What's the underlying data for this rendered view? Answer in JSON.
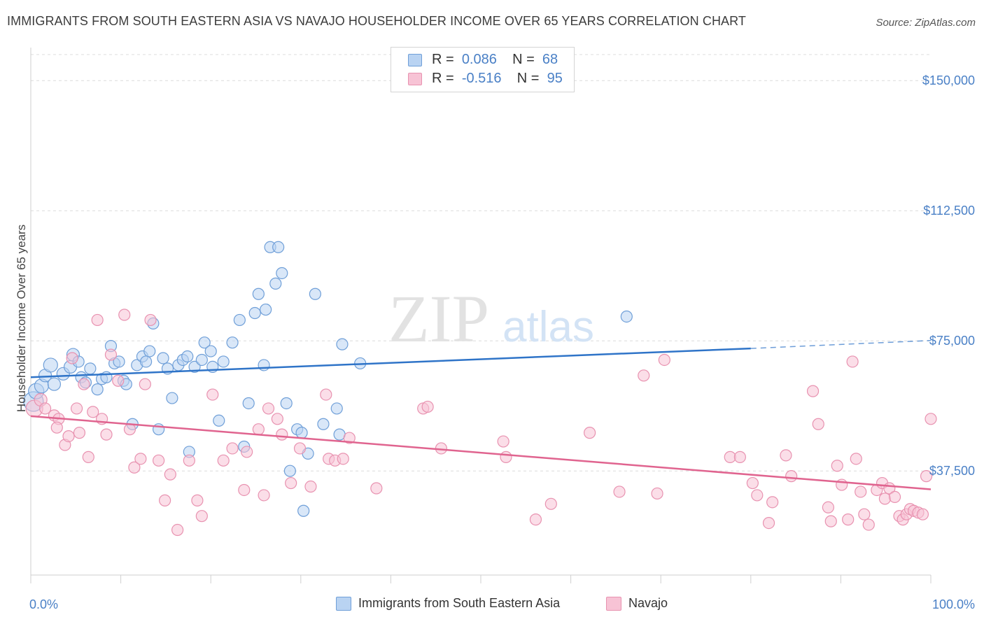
{
  "header": {
    "title": "IMMIGRANTS FROM SOUTH EASTERN ASIA VS NAVAJO HOUSEHOLDER INCOME OVER 65 YEARS CORRELATION CHART",
    "source": "Source: ZipAtlas.com"
  },
  "watermark": {
    "part1": "ZIP",
    "part2": "atlas"
  },
  "legend": {
    "series1": {
      "r_label": "R =",
      "r_value": "0.086",
      "n_label": "N =",
      "n_value": "68",
      "color": "#4a80c6"
    },
    "series2": {
      "r_label": "R =",
      "r_value": "-0.516",
      "n_label": "N =",
      "n_value": "95",
      "color": "#e36f9c"
    }
  },
  "colors": {
    "blue_fill": "#b9d3f2",
    "blue_stroke": "#6f9fd8",
    "blue_line": "#2f74c8",
    "pink_fill": "#f7c3d5",
    "pink_stroke": "#e892b0",
    "pink_line": "#e0648f",
    "grid": "#dcdcdc",
    "tick_text": "#4a80c6"
  },
  "chart_data": {
    "type": "scatter",
    "title": "IMMIGRANTS FROM SOUTH EASTERN ASIA VS NAVAJO HOUSEHOLDER INCOME OVER 65 YEARS CORRELATION CHART",
    "xlabel": "",
    "ylabel": "Householder Income Over 65 years",
    "xlim": [
      0,
      100
    ],
    "ylim": [
      7500,
      157500
    ],
    "x_tick_labels": [
      "0.0%",
      "100.0%"
    ],
    "y_ticks": [
      37500,
      75000,
      112500,
      150000
    ],
    "y_tick_labels": [
      "$37,500",
      "$75,000",
      "$112,500",
      "$150,000"
    ],
    "grid": true,
    "legend_position": "top-center",
    "series": [
      {
        "name": "Immigrants from South Eastern Asia",
        "color": "#4a80c6",
        "trend": {
          "x0": 0,
          "y0": 64500,
          "x1": 80,
          "y1": 72800,
          "dashed_to_x": 100,
          "dashed_to_y": 75100
        },
        "points": [
          [
            0.3,
            57500,
            14
          ],
          [
            0.6,
            60500,
            11
          ],
          [
            1.2,
            62000,
            10
          ],
          [
            1.6,
            65000,
            9
          ],
          [
            2.2,
            68000,
            10
          ],
          [
            2.6,
            62500,
            9
          ],
          [
            3.6,
            65500,
            9
          ],
          [
            4.4,
            67500,
            9
          ],
          [
            4.7,
            71000,
            9
          ],
          [
            5.3,
            69000,
            8
          ],
          [
            5.6,
            64500,
            8
          ],
          [
            6.1,
            63000,
            8
          ],
          [
            6.6,
            67000,
            8
          ],
          [
            7.4,
            61000,
            8
          ],
          [
            7.9,
            64000,
            8
          ],
          [
            8.4,
            64500,
            8
          ],
          [
            8.9,
            73500,
            8
          ],
          [
            9.3,
            68500,
            8
          ],
          [
            9.8,
            69000,
            8
          ],
          [
            10.3,
            63500,
            8
          ],
          [
            10.6,
            62500,
            8
          ],
          [
            11.3,
            51000,
            8
          ],
          [
            11.8,
            68000,
            8
          ],
          [
            12.4,
            70500,
            8
          ],
          [
            12.8,
            69000,
            8
          ],
          [
            13.2,
            72000,
            8
          ],
          [
            13.6,
            80000,
            8
          ],
          [
            14.2,
            49500,
            8
          ],
          [
            14.7,
            70000,
            8
          ],
          [
            15.2,
            67000,
            8
          ],
          [
            15.7,
            58500,
            8
          ],
          [
            16.4,
            68000,
            8
          ],
          [
            16.9,
            69500,
            8
          ],
          [
            17.4,
            70500,
            8
          ],
          [
            17.6,
            43000,
            8
          ],
          [
            18.2,
            67500,
            8
          ],
          [
            19.0,
            69500,
            8
          ],
          [
            19.3,
            74500,
            8
          ],
          [
            20.0,
            72000,
            8
          ],
          [
            20.2,
            67500,
            8
          ],
          [
            20.9,
            52000,
            8
          ],
          [
            21.4,
            69000,
            8
          ],
          [
            22.4,
            74500,
            8
          ],
          [
            23.2,
            81000,
            8
          ],
          [
            23.7,
            44500,
            8
          ],
          [
            24.2,
            57000,
            8
          ],
          [
            24.9,
            83000,
            8
          ],
          [
            25.3,
            88500,
            8
          ],
          [
            25.9,
            68000,
            8
          ],
          [
            26.1,
            84000,
            8
          ],
          [
            26.6,
            102000,
            8
          ],
          [
            27.2,
            91500,
            8
          ],
          [
            27.5,
            102000,
            8
          ],
          [
            27.9,
            94500,
            8
          ],
          [
            28.4,
            57000,
            8
          ],
          [
            28.8,
            37500,
            8
          ],
          [
            29.6,
            49500,
            8
          ],
          [
            30.3,
            26000,
            8
          ],
          [
            30.1,
            48500,
            8
          ],
          [
            30.8,
            42500,
            8
          ],
          [
            31.6,
            88500,
            8
          ],
          [
            32.5,
            51000,
            8
          ],
          [
            34.0,
            55500,
            8
          ],
          [
            34.3,
            48000,
            8
          ],
          [
            34.6,
            74000,
            8
          ],
          [
            36.6,
            68500,
            8
          ],
          [
            66.2,
            82000,
            8
          ]
        ]
      },
      {
        "name": "Navajo",
        "color": "#e36f9c",
        "trend": {
          "x0": 0,
          "y0": 53300,
          "x1": 100,
          "y1": 32200
        },
        "points": [
          [
            0.4,
            55500,
            12
          ],
          [
            1.1,
            58000,
            9
          ],
          [
            1.6,
            55500,
            8
          ],
          [
            2.6,
            53500,
            8
          ],
          [
            3.1,
            52500,
            8
          ],
          [
            2.9,
            50000,
            8
          ],
          [
            3.8,
            45000,
            8
          ],
          [
            4.2,
            47500,
            8
          ],
          [
            4.6,
            70000,
            8
          ],
          [
            5.1,
            55500,
            8
          ],
          [
            5.4,
            48500,
            8
          ],
          [
            5.9,
            62500,
            8
          ],
          [
            6.4,
            41500,
            8
          ],
          [
            6.9,
            54500,
            8
          ],
          [
            7.4,
            81000,
            8
          ],
          [
            7.9,
            52500,
            8
          ],
          [
            8.4,
            48000,
            8
          ],
          [
            8.9,
            71000,
            8
          ],
          [
            9.7,
            63500,
            8
          ],
          [
            10.4,
            82500,
            8
          ],
          [
            11.0,
            49500,
            8
          ],
          [
            11.5,
            38500,
            8
          ],
          [
            12.2,
            41000,
            8
          ],
          [
            12.7,
            62500,
            8
          ],
          [
            13.3,
            81000,
            8
          ],
          [
            14.2,
            40500,
            8
          ],
          [
            14.9,
            29000,
            8
          ],
          [
            15.5,
            36500,
            8
          ],
          [
            16.3,
            20500,
            8
          ],
          [
            17.6,
            40500,
            8
          ],
          [
            18.5,
            29000,
            8
          ],
          [
            19.0,
            24500,
            8
          ],
          [
            20.2,
            59500,
            8
          ],
          [
            21.4,
            40500,
            8
          ],
          [
            22.4,
            44000,
            8
          ],
          [
            23.7,
            32000,
            8
          ],
          [
            24.0,
            43000,
            8
          ],
          [
            25.3,
            49500,
            8
          ],
          [
            25.9,
            30500,
            8
          ],
          [
            26.4,
            55500,
            8
          ],
          [
            27.4,
            52500,
            8
          ],
          [
            27.9,
            48000,
            8
          ],
          [
            28.9,
            34000,
            8
          ],
          [
            29.9,
            44000,
            8
          ],
          [
            31.1,
            33000,
            8
          ],
          [
            32.8,
            59500,
            8
          ],
          [
            33.1,
            41000,
            8
          ],
          [
            33.8,
            40500,
            8
          ],
          [
            34.7,
            41000,
            8
          ],
          [
            35.4,
            47000,
            8
          ],
          [
            38.4,
            32500,
            8
          ],
          [
            43.6,
            55500,
            8
          ],
          [
            44.1,
            56000,
            8
          ],
          [
            45.6,
            44000,
            8
          ],
          [
            52.5,
            46000,
            8
          ],
          [
            52.8,
            41500,
            8
          ],
          [
            56.1,
            23500,
            8
          ],
          [
            57.8,
            28000,
            8
          ],
          [
            62.1,
            48500,
            8
          ],
          [
            65.4,
            31500,
            8
          ],
          [
            68.1,
            65000,
            8
          ],
          [
            69.6,
            31000,
            8
          ],
          [
            70.4,
            69500,
            8
          ],
          [
            77.7,
            41500,
            8
          ],
          [
            78.8,
            41500,
            8
          ],
          [
            80.2,
            34000,
            8
          ],
          [
            80.7,
            30500,
            8
          ],
          [
            82.0,
            22500,
            8
          ],
          [
            82.4,
            28500,
            8
          ],
          [
            83.9,
            42000,
            8
          ],
          [
            84.5,
            36000,
            8
          ],
          [
            86.9,
            60500,
            8
          ],
          [
            87.5,
            51000,
            8
          ],
          [
            88.6,
            27000,
            8
          ],
          [
            88.9,
            23000,
            8
          ],
          [
            89.6,
            39000,
            8
          ],
          [
            90.1,
            33500,
            8
          ],
          [
            90.8,
            23500,
            8
          ],
          [
            91.3,
            69000,
            8
          ],
          [
            91.7,
            41000,
            8
          ],
          [
            92.2,
            31500,
            8
          ],
          [
            92.6,
            25000,
            8
          ],
          [
            93.1,
            22000,
            8
          ],
          [
            94.0,
            32000,
            8
          ],
          [
            94.6,
            34000,
            8
          ],
          [
            94.9,
            29500,
            8
          ],
          [
            95.4,
            32500,
            8
          ],
          [
            96.0,
            30000,
            8
          ],
          [
            96.5,
            24500,
            8
          ],
          [
            96.9,
            23500,
            8
          ],
          [
            97.3,
            25000,
            8
          ],
          [
            97.7,
            26500,
            8
          ],
          [
            98.1,
            26000,
            8
          ],
          [
            98.6,
            25500,
            8
          ],
          [
            99.1,
            25000,
            8
          ],
          [
            99.5,
            36000,
            8
          ],
          [
            100.0,
            52500,
            8
          ]
        ]
      }
    ]
  }
}
